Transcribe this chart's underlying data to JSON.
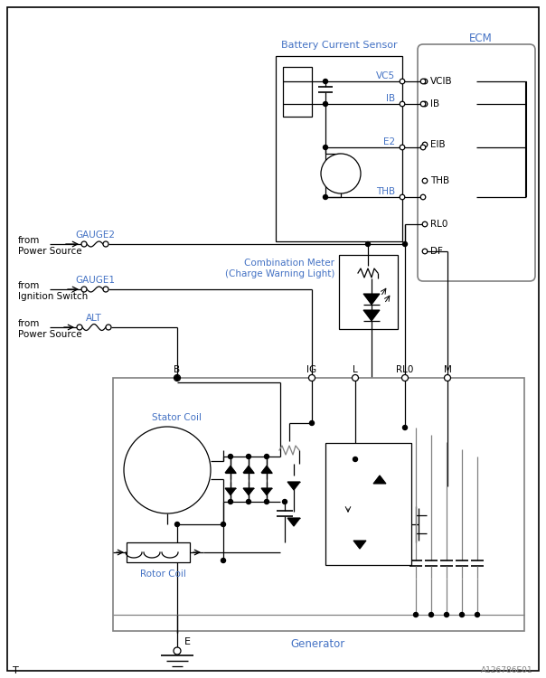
{
  "bg_color": "#ffffff",
  "blue": "#4472c4",
  "black": "#000000",
  "gray": "#808080",
  "fig_width": 6.04,
  "fig_height": 7.5,
  "dpi": 100,
  "ecm_label": "ECM",
  "bcs_label": "Battery Current Sensor",
  "gen_label": "Generator",
  "combo_label": "Combination Meter\n(Charge Warning Light)",
  "gauge2_label": "GAUGE2",
  "gauge1_label": "GAUGE1",
  "alt_label": "ALT",
  "stator_label": "Stator Coil",
  "rotor_label": "Rotor Coil",
  "e_label": "E",
  "t_label": "T",
  "watermark": "A126786E01",
  "from1": "from\nPower Source",
  "from2": "from\nIgnition Switch",
  "from3": "from\nPower Source"
}
